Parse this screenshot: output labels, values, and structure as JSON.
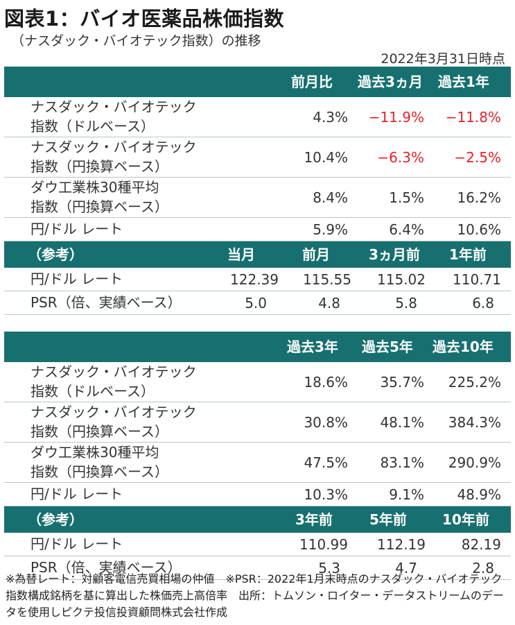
{
  "title": "図表1：バイオ医薬品株価指数",
  "subtitle": "（ナスダック・バイオテック指数）の推移",
  "as_of": "2022年3月31日時点",
  "table1": {
    "headers": [
      "前月比",
      "過去3ヵ月",
      "過去1年"
    ],
    "rows": [
      {
        "label1": "ナスダック・バイオテック",
        "label2": "指数（ドルベース）",
        "values": [
          "4.3%",
          "−11.9%",
          "−11.8%"
        ]
      },
      {
        "label1": "ナスダック・バイオテック",
        "label2": "指数（円換算ベース）",
        "values": [
          "10.4%",
          "−6.3%",
          "−2.5%"
        ]
      },
      {
        "label1": "ダウ工業株30種平均",
        "label2": "指数（円換算ベース）",
        "values": [
          "8.4%",
          "1.5%",
          "16.2%"
        ]
      },
      {
        "label1": "円/ドル レート",
        "label2": "",
        "values": [
          "5.9%",
          "6.4%",
          "10.6%"
        ]
      }
    ],
    "ref_headers": [
      "（参考）",
      "当月",
      "前月",
      "3ヵ月前",
      "1年前"
    ],
    "ref_rows": [
      {
        "label": "円/ドル レート",
        "values": [
          "122.39",
          "115.55",
          "115.02",
          "110.71"
        ]
      },
      {
        "label": "PSR（倍、実績ベース）",
        "values": [
          "5.0",
          "4.8",
          "5.8",
          "6.8"
        ]
      }
    ]
  },
  "table2": {
    "headers": [
      "過去3年",
      "過去5年",
      "過去10年"
    ],
    "rows": [
      {
        "label1": "ナスダック・バイオテック",
        "label2": "指数（ドルベース）",
        "values": [
          "18.6%",
          "35.7%",
          "225.2%"
        ]
      },
      {
        "label1": "ナスダック・バイオテック",
        "label2": "指数（円換算ベース）",
        "values": [
          "30.8%",
          "48.1%",
          "384.3%"
        ]
      },
      {
        "label1": "ダウ工業株30種平均",
        "label2": "指数（円換算ベース）",
        "values": [
          "47.5%",
          "83.1%",
          "290.9%"
        ]
      },
      {
        "label1": "円/ドル レート",
        "label2": "",
        "values": [
          "10.3%",
          "9.1%",
          "48.9%"
        ]
      }
    ],
    "ref_headers": [
      "（参考）",
      "3年前",
      "5年前",
      "10年前"
    ],
    "ref_rows": [
      {
        "label": "円/ドル レート",
        "values": [
          "110.99",
          "112.19",
          "82.19"
        ]
      },
      {
        "label": "PSR（倍、実績ベース）",
        "values": [
          "5.3",
          "4.7",
          "2.8"
        ]
      }
    ]
  },
  "note": "※為替レート：対顧客電信売買相場の仲値　※PSR：2022年1月末時点のナスダック・バイオテック指数構成銘柄を基に算出した株価売上高倍率　出所：トムソン・ロイター・データストリームのデータを使用しピクテ投信投資顧問株式会社作成",
  "colors": {
    "header_bg": "#17706f",
    "negative": "#e8202a"
  }
}
